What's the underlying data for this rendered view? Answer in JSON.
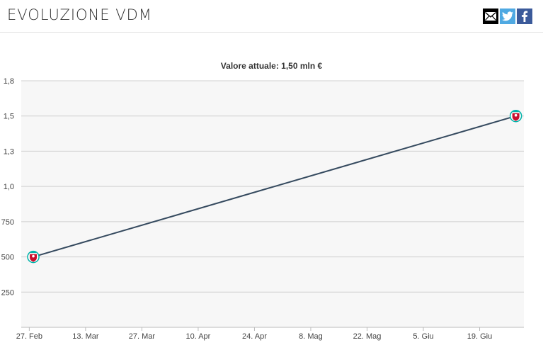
{
  "header": {
    "title": "EVOLUZIONE VDM",
    "social": [
      {
        "name": "mail-icon"
      },
      {
        "name": "twitter-icon"
      },
      {
        "name": "facebook-icon"
      }
    ]
  },
  "colors": {
    "line": "#34495e",
    "plot_background": "#f7f7f7",
    "grid": "#cfcfcf",
    "marker_primary": "#c8102e",
    "marker_secondary": "#00b2a9"
  },
  "chart_data": {
    "type": "line",
    "title": "Valore attuale: 1,50 mln €",
    "xlabel": "",
    "ylabel": "",
    "y_ticks": [
      "250",
      "500",
      "750",
      "1,0",
      "1,3",
      "1,5",
      "1,8"
    ],
    "y_tick_values": [
      250,
      500,
      750,
      1000,
      1250,
      1500,
      1750
    ],
    "ylim": [
      0,
      1750
    ],
    "x_ticks": [
      "27. Feb",
      "13. Mar",
      "27. Mar",
      "10. Apr",
      "24. Apr",
      "8. Mag",
      "22. Mag",
      "5. Giu",
      "19. Giu"
    ],
    "x_tick_values": [
      "2015-02-27",
      "2015-03-13",
      "2015-03-27",
      "2015-04-10",
      "2015-04-24",
      "2015-05-08",
      "2015-05-22",
      "2015-06-05",
      "2015-06-19"
    ],
    "xlim": [
      "2015-02-25",
      "2015-06-30"
    ],
    "grid": true,
    "series": [
      {
        "marker_icon": "club-crest-icon",
        "points": [
          {
            "x": "2015-02-28",
            "y": 500
          },
          {
            "x": "2015-06-28",
            "y": 1500
          }
        ]
      }
    ]
  }
}
